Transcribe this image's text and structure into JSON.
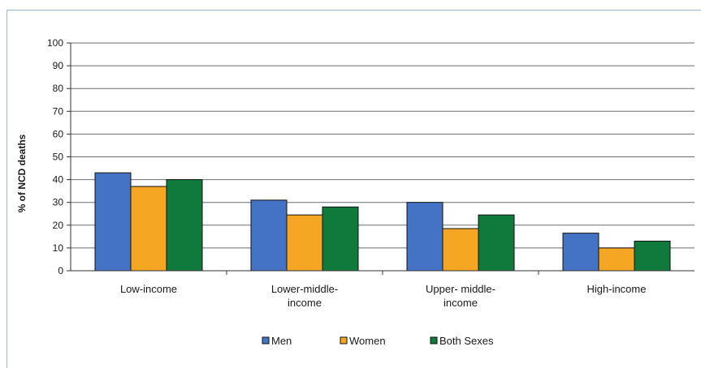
{
  "chart_data": {
    "type": "bar",
    "title": "",
    "xlabel": "",
    "ylabel": "% of NCD deaths",
    "ylim": [
      0,
      100
    ],
    "yticks": [
      0,
      10,
      20,
      30,
      40,
      50,
      60,
      70,
      80,
      90,
      100
    ],
    "grid": true,
    "legend_position": "bottom",
    "categories": [
      [
        "Low-income"
      ],
      [
        "Lower-middle-",
        "income"
      ],
      [
        "Upper- middle-",
        "income"
      ],
      [
        "High-income"
      ]
    ],
    "series": [
      {
        "name": "Men",
        "color": "#4472c4",
        "values": [
          43,
          31,
          30,
          16.5
        ]
      },
      {
        "name": "Women",
        "color": "#f5a623",
        "values": [
          37,
          24.5,
          18.5,
          10
        ]
      },
      {
        "name": "Both Sexes",
        "color": "#0f7a3c",
        "values": [
          40,
          28,
          24.5,
          13
        ]
      }
    ]
  }
}
